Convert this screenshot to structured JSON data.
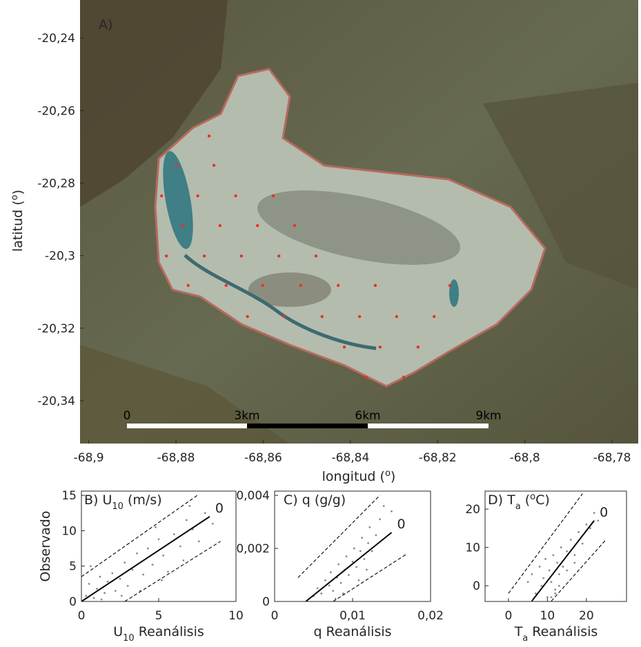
{
  "chart_data": [
    {
      "type": "scatter",
      "title": "A)",
      "xlabel": [
        "longitud (",
        "o",
        ")"
      ],
      "ylabel": [
        "latitud (",
        "o",
        ")"
      ],
      "xlim": [
        -68.902,
        -68.774
      ],
      "ylim": [
        -20.3518,
        -20.2295
      ],
      "xticks": [
        {
          "value": -68.9,
          "label": "-68,9"
        },
        {
          "value": -68.88,
          "label": "-68,88"
        },
        {
          "value": -68.86,
          "label": "-68,86"
        },
        {
          "value": -68.84,
          "label": "-68,84"
        },
        {
          "value": -68.82,
          "label": "-68,82"
        },
        {
          "value": -68.8,
          "label": "-68,8"
        },
        {
          "value": -68.78,
          "label": "-68,78"
        }
      ],
      "yticks": [
        {
          "value": -20.24,
          "label": "-20,24"
        },
        {
          "value": -20.26,
          "label": "-20,26"
        },
        {
          "value": -20.28,
          "label": "-20,28"
        },
        {
          "value": -20.3,
          "label": "-20,3"
        },
        {
          "value": -20.32,
          "label": "-20,32"
        },
        {
          "value": -20.34,
          "label": "-20,34"
        }
      ],
      "scale_bar": [
        "0",
        "3km",
        "6km",
        "9km"
      ],
      "series": [
        {
          "color": "#e8322b",
          "x": [
            -68.8724,
            -68.8799,
            -68.8713,
            -68.8833,
            -68.875,
            -68.8663,
            -68.8577,
            -68.8784,
            -68.8699,
            -68.8613,
            -68.8528,
            -68.8822,
            -68.8735,
            -68.865,
            -68.8564,
            -68.8479,
            -68.8772,
            -68.8685,
            -68.8601,
            -68.8514,
            -68.8428,
            -68.8343,
            -68.8172,
            -68.8636,
            -68.8552,
            -68.8465,
            -68.8379,
            -68.8294,
            -68.8208,
            -68.8414,
            -68.8332,
            -68.8245,
            -68.8364,
            -68.8278
          ],
          "values": [
            -20.267,
            -20.2751,
            -20.2751,
            -20.2835,
            -20.2835,
            -20.2835,
            -20.2835,
            -20.2917,
            -20.2917,
            -20.2917,
            -20.2917,
            -20.3001,
            -20.3001,
            -20.3001,
            -20.3001,
            -20.3001,
            -20.3082,
            -20.3082,
            -20.3082,
            -20.3082,
            -20.3082,
            -20.3082,
            -20.3082,
            -20.3168,
            -20.3168,
            -20.3168,
            -20.3168,
            -20.3168,
            -20.3168,
            -20.3252,
            -20.3252,
            -20.3252,
            -20.3335,
            -20.3335
          ]
        }
      ]
    },
    {
      "type": "scatter",
      "title": [
        "B) U",
        "10",
        " (m/s)"
      ],
      "xlabel": [
        "U",
        "10",
        " Reanálisis"
      ],
      "ylabel": "Observado",
      "xlim": [
        0,
        10
      ],
      "ylim": [
        0,
        15.6
      ],
      "xticks": [
        0,
        5,
        10
      ],
      "yticks": [
        0,
        5,
        10,
        15
      ],
      "series": [
        {
          "color": "#8a8a8a",
          "x": [
            0.3,
            0.5,
            0.8,
            1.0,
            1.2,
            1.5,
            1.7,
            2.0,
            2.2,
            2.5,
            2.8,
            3.0,
            3.3,
            3.6,
            4.0,
            4.3,
            4.6,
            5.0,
            5.3,
            5.6,
            6.0,
            6.4,
            6.8,
            7.2,
            7.6,
            8.0,
            8.5,
            1.3,
            2.6,
            3.8,
            5.2,
            6.6,
            0.6,
            4.8,
            7.0
          ],
          "values": [
            0.8,
            2.5,
            0.5,
            1.8,
            3.5,
            1.2,
            2.8,
            4.0,
            1.5,
            3.2,
            5.5,
            2.2,
            4.5,
            6.8,
            3.8,
            7.5,
            5.2,
            8.8,
            6.5,
            4.2,
            9.5,
            7.8,
            11.5,
            10.2,
            8.5,
            12.5,
            11.0,
            0.3,
            0.8,
            1.5,
            3.0,
            5.8,
            5.0,
            10.5,
            13.5
          ]
        }
      ],
      "lines": [
        {
          "style": "solid",
          "color": "#000000",
          "x": [
            0,
            8.3
          ],
          "values": [
            0,
            12
          ],
          "label": "0"
        },
        {
          "style": "dashed",
          "color": "#000000",
          "x": [
            0,
            7.5
          ],
          "values": [
            3.5,
            15
          ]
        },
        {
          "style": "dashed",
          "color": "#000000",
          "x": [
            2.8,
            9
          ],
          "values": [
            0,
            8.5
          ]
        }
      ]
    },
    {
      "type": "scatter",
      "title": "C) q (g/g)",
      "xlabel": "q Reanálisis",
      "xlim": [
        0,
        0.02
      ],
      "ylim": [
        0,
        0.00416
      ],
      "xticks": [
        0,
        {
          "value": 0.01,
          "label": "0,01"
        },
        {
          "value": 0.02,
          "label": "0,02"
        }
      ],
      "yticks": [
        0,
        {
          "value": 0.002,
          "label": "0,002"
        },
        {
          "value": 0.004,
          "label": "0,004"
        }
      ],
      "series": [
        {
          "color": "#8a8a8a",
          "x": [
            0.005,
            0.0055,
            0.006,
            0.0065,
            0.007,
            0.0072,
            0.0075,
            0.008,
            0.0082,
            0.0085,
            0.009,
            0.0092,
            0.0095,
            0.01,
            0.0102,
            0.0105,
            0.011,
            0.0112,
            0.0115,
            0.012,
            0.0122,
            0.0125,
            0.013,
            0.0135,
            0.014,
            0.015,
            0.0078,
            0.0088,
            0.0108,
            0.0118
          ],
          "values": [
            0.0002,
            0.0005,
            0.0003,
            0.0008,
            0.0006,
            0.0011,
            0.0004,
            0.0009,
            0.0014,
            0.0007,
            0.0012,
            0.0017,
            0.001,
            0.0015,
            0.002,
            0.0013,
            0.0019,
            0.0024,
            0.0016,
            0.0022,
            0.0028,
            0.0019,
            0.0025,
            0.0031,
            0.0036,
            0.0034,
            0.0001,
            0.0003,
            0.0008,
            0.0012
          ]
        }
      ],
      "lines": [
        {
          "style": "solid",
          "color": "#000000",
          "x": [
            0.004,
            0.015
          ],
          "values": [
            0,
            0.0026
          ],
          "label": "0"
        },
        {
          "style": "dashed",
          "color": "#000000",
          "x": [
            0.003,
            0.0135
          ],
          "values": [
            0.0009,
            0.004
          ]
        },
        {
          "style": "dashed",
          "color": "#000000",
          "x": [
            0.0075,
            0.017
          ],
          "values": [
            0,
            0.0018
          ]
        }
      ]
    },
    {
      "type": "scatter",
      "title": [
        "D) T",
        "a",
        " (",
        "o",
        "C)"
      ],
      "xlabel": [
        "T",
        "a",
        " Reanálisis"
      ],
      "xlim": [
        -6,
        30.3
      ],
      "ylim": [
        -4.1,
        24.7
      ],
      "xticks": [
        0,
        10,
        20
      ],
      "yticks": [
        0,
        10,
        20
      ],
      "series": [
        {
          "color": "#8a8a8a",
          "x": [
            5,
            6,
            7,
            8,
            8.5,
            9,
            9.5,
            10,
            10.5,
            11,
            11.5,
            12,
            12.5,
            13,
            13.5,
            14,
            15,
            16,
            17,
            18,
            19,
            20,
            21,
            22,
            23,
            11,
            12,
            13,
            15,
            17
          ],
          "values": [
            1,
            3,
            -2,
            5,
            0,
            2,
            7,
            -3,
            4,
            1,
            8,
            -1,
            6,
            3,
            10,
            5,
            9,
            12,
            8,
            14,
            11,
            16,
            15,
            19,
            17,
            -3,
            -2,
            0,
            4,
            6
          ]
        }
      ],
      "lines": [
        {
          "style": "solid",
          "color": "#000000",
          "x": [
            6,
            22
          ],
          "values": [
            -4,
            17
          ],
          "label": "0"
        },
        {
          "style": "dashed",
          "color": "#000000",
          "x": [
            0,
            19
          ],
          "values": [
            -2,
            24
          ]
        },
        {
          "style": "dashed",
          "color": "#000000",
          "x": [
            11,
            25
          ],
          "values": [
            -4,
            12
          ]
        }
      ]
    }
  ]
}
